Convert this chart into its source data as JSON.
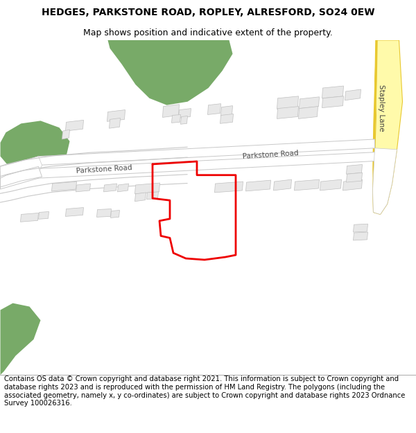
{
  "title": "HEDGES, PARKSTONE ROAD, ROPLEY, ALRESFORD, SO24 0EW",
  "subtitle": "Map shows position and indicative extent of the property.",
  "footer": "Contains OS data © Crown copyright and database right 2021. This information is subject to Crown copyright and database rights 2023 and is reproduced with the permission of HM Land Registry. The polygons (including the associated geometry, namely x, y co-ordinates) are subject to Crown copyright and database rights 2023 Ordnance Survey 100026316.",
  "map_bg": "#f2f2ee",
  "road_color": "#ffffff",
  "road_border": "#c8c8c8",
  "building_color": "#e8e8e8",
  "building_border": "#c0c0c0",
  "green_color": "#78aa68",
  "yellow_road_fill": "#fffaaa",
  "yellow_road_edge": "#e8c830",
  "red_outline_color": "#ee0000",
  "title_fontsize": 10,
  "subtitle_fontsize": 9,
  "footer_fontsize": 7.2
}
